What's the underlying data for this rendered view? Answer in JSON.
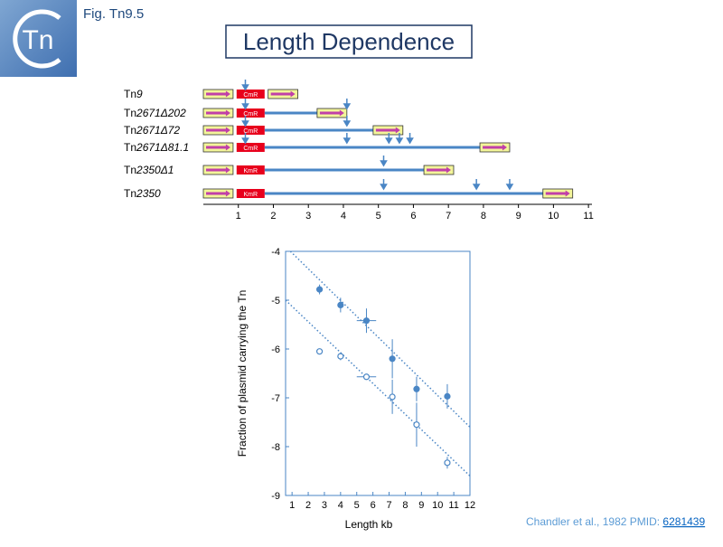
{
  "header": {
    "logo": "Tn",
    "fig": "Fig. Tn9.5",
    "title": "Length Dependence"
  },
  "diagram": {
    "xlim": [
      0,
      11.1
    ],
    "ticks": [
      1,
      2,
      3,
      4,
      5,
      6,
      7,
      8,
      9,
      10,
      11
    ],
    "rows": [
      {
        "prefix": "Tn",
        "italic": "9",
        "marker": "CmR",
        "line_end": 1.75,
        "is_starts": [
          0,
          1.85
        ],
        "arrows": [
          1.2
        ]
      },
      {
        "prefix": "Tn",
        "italic": "2671Δ202",
        "marker": "CmR",
        "line_end": 3.3,
        "is_starts": [
          0,
          3.25
        ],
        "arrows": [
          1.2,
          4.1
        ]
      },
      {
        "prefix": "Tn",
        "italic": "2671Δ72",
        "marker": "CmR",
        "line_end": 4.9,
        "is_starts": [
          0,
          4.85
        ],
        "arrows": [
          1.2,
          4.1
        ]
      },
      {
        "prefix": "Tn",
        "italic": "2671Δ81.1",
        "marker": "CmR",
        "line_end": 7.9,
        "is_starts": [
          0,
          7.9
        ],
        "arrows": [
          1.2,
          4.1,
          5.3,
          5.6,
          5.9
        ]
      },
      {
        "prefix": "Tn",
        "italic": "2350Δ1",
        "marker": "KmR",
        "line_end": 6.3,
        "is_starts": [
          0,
          6.3
        ],
        "arrows": [
          5.15
        ]
      },
      {
        "prefix": "Tn",
        "italic": "2350",
        "marker": "KmR",
        "line_end": 9.7,
        "is_starts": [
          0,
          9.7
        ],
        "arrows": [
          5.15,
          7.8,
          8.75
        ]
      }
    ]
  },
  "chart_data": {
    "type": "scatter",
    "x_label": "Length kb",
    "y_label": "Fraction of plasmid carrying the Tn",
    "xlim": [
      0.6,
      12
    ],
    "ylim": [
      -9,
      -4
    ],
    "xticks": [
      1,
      2,
      3,
      4,
      5,
      6,
      7,
      8,
      9,
      10,
      11,
      12
    ],
    "yticks": [
      -4,
      -5,
      -6,
      -7,
      -8,
      -9
    ],
    "series": [
      {
        "color": "#4a86c5",
        "filled": true,
        "x": [
          2.7,
          4.0,
          5.6,
          7.2,
          8.7,
          10.6
        ],
        "values": [
          -4.78,
          -5.1,
          -5.42,
          -6.2,
          -6.82,
          -6.97
        ],
        "yerr": [
          0.1,
          0.15,
          0.25,
          0.4,
          0.25,
          0.25
        ],
        "xerr": [
          null,
          null,
          0.6,
          null,
          null,
          null
        ],
        "fit": {
          "x": [
            0.9,
            12
          ],
          "values": [
            -4.0,
            -7.6
          ]
        }
      },
      {
        "color": "#4a86c5",
        "filled": false,
        "x": [
          2.7,
          4.0,
          5.6,
          7.2,
          8.7,
          10.6
        ],
        "values": [
          -6.05,
          -6.15,
          -6.57,
          -6.98,
          -7.55,
          -8.33
        ],
        "yerr": [
          null,
          0.08,
          null,
          0.35,
          0.45,
          0.12
        ],
        "xerr": [
          null,
          null,
          0.6,
          null,
          null,
          null
        ],
        "fit": {
          "x": [
            0.6,
            12
          ],
          "values": [
            -5.0,
            -8.6
          ]
        }
      }
    ]
  },
  "citation": {
    "text": "Chandler et al., 1982 PMID: ",
    "link": "6281439"
  }
}
